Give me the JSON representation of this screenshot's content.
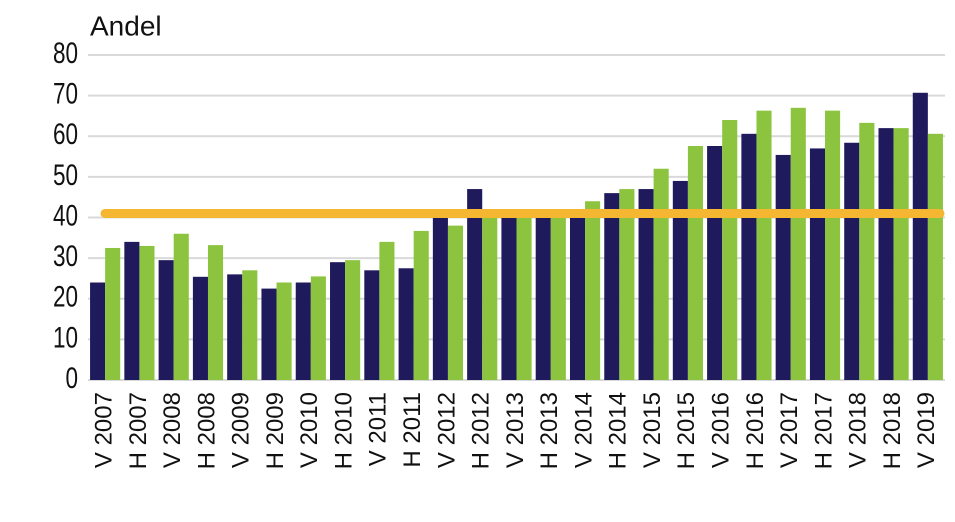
{
  "chart_data": {
    "type": "bar",
    "title": "Andel",
    "categories": [
      "V 2007",
      "H 2007",
      "V 2008",
      "H 2008",
      "V 2009",
      "H 2009",
      "V 2010",
      "H 2010",
      "V 2011",
      "H 2011",
      "V 2012",
      "H 2012",
      "V 2013",
      "H 2013",
      "V 2014",
      "H 2014",
      "V 2015",
      "H 2015",
      "V 2016",
      "H 2016",
      "V 2017",
      "H 2017",
      "V 2018",
      "H 2018",
      "V 2019"
    ],
    "series": [
      {
        "color": "#1f1a5c",
        "values": [
          24,
          34,
          29.5,
          25.4,
          26,
          22.5,
          24,
          29,
          27,
          27.5,
          40.4,
          47,
          41,
          41,
          41,
          46,
          47,
          49,
          57.6,
          60.6,
          55.4,
          57,
          58.4,
          62,
          70.7
        ]
      },
      {
        "color": "#8cc43f",
        "values": [
          32.5,
          33,
          36,
          33.2,
          27,
          24,
          25.5,
          29.5,
          34,
          36.7,
          38,
          42,
          41,
          41,
          44,
          47,
          52,
          57.6,
          64,
          66.3,
          67,
          66.3,
          63.3,
          62,
          60.6
        ]
      }
    ],
    "reference_line": {
      "value": 41,
      "color": "#f5b731"
    },
    "ylim": [
      0,
      80
    ],
    "yticks": [
      0,
      10,
      20,
      30,
      40,
      50,
      60,
      70,
      80
    ],
    "grid": true
  }
}
